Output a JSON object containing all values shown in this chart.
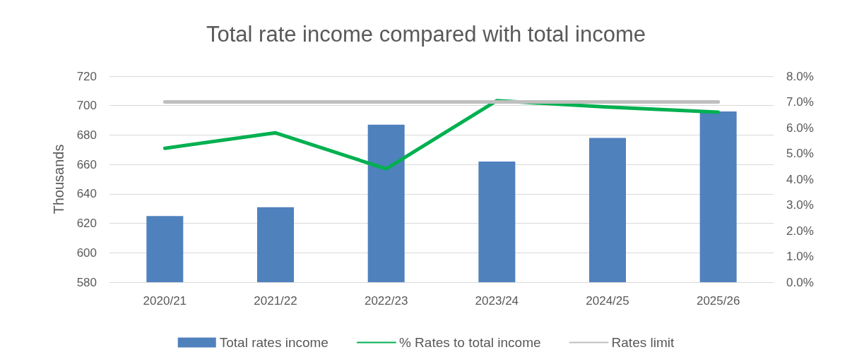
{
  "chart_data": {
    "type": "bar",
    "title": "Total rate income compared with total income",
    "ylabel": "Thousands",
    "categories": [
      "2020/21",
      "2021/22",
      "2022/23",
      "2023/24",
      "2024/25",
      "2025/26"
    ],
    "series": [
      {
        "name": "Total rates income",
        "color": "#4f81bd",
        "values": [
          625,
          631,
          687,
          662,
          678,
          696
        ]
      },
      {
        "name": "% Rates to total income",
        "type": "line",
        "axis": "y2",
        "color": "#00b050",
        "values": [
          5.2,
          5.8,
          4.4,
          7.05,
          6.8,
          6.6
        ]
      },
      {
        "name": "Rates limit",
        "type": "line",
        "axis": "y2",
        "color": "#bfbfbf",
        "values": [
          7.0,
          7.0,
          7.0,
          7.0,
          7.0,
          7.0
        ]
      }
    ],
    "ylim": [
      580,
      720
    ],
    "yticks": [
      580,
      600,
      620,
      640,
      660,
      680,
      700,
      720
    ],
    "y2lim": [
      0,
      8
    ],
    "y2ticks": [
      {
        "value": 0,
        "label": "0.0%"
      },
      {
        "value": 1,
        "label": "1.0%"
      },
      {
        "value": 2,
        "label": "2.0%"
      },
      {
        "value": 3,
        "label": "3.0%"
      },
      {
        "value": 4,
        "label": "4.0%"
      },
      {
        "value": 5,
        "label": "5.0%"
      },
      {
        "value": 6,
        "label": "6.0%"
      },
      {
        "value": 7,
        "label": "7.0%"
      },
      {
        "value": 8,
        "label": "8.0%"
      }
    ],
    "grid": "y",
    "legend": "bottom",
    "marker": "none"
  }
}
